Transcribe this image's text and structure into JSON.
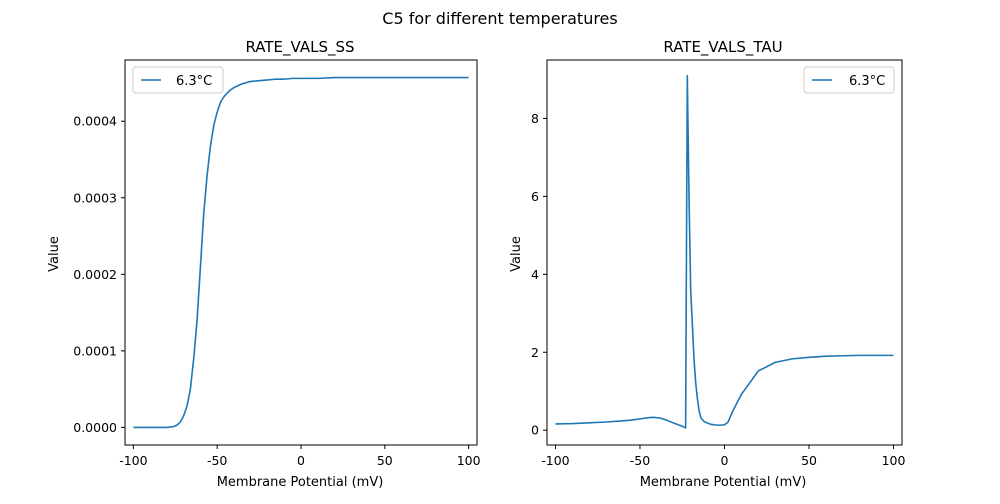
{
  "chart_data": {
    "suptitle": "C5 for different temperatures",
    "panels": [
      {
        "type": "line",
        "title": "RATE_VALS_SS",
        "xlabel": "Membrane Potential (mV)",
        "ylabel": "Value",
        "xlim": [
          -105,
          105
        ],
        "ylim": [
          -2.3e-05,
          0.00048
        ],
        "xticks": [
          -100,
          -50,
          0,
          50,
          100
        ],
        "yticks": [
          0.0,
          0.0001,
          0.0002,
          0.0003,
          0.0004
        ],
        "ytick_labels": [
          "0.0000",
          "0.0001",
          "0.0002",
          "0.0003",
          "0.0004"
        ],
        "legend_position": "top-left",
        "series": [
          {
            "name": "6.3°C",
            "color": "#1f77b4",
            "x": [
              -100,
              -90,
              -80,
              -76,
              -74,
              -72,
              -70,
              -68,
              -66,
              -64,
              -62,
              -60,
              -58,
              -56,
              -54,
              -52,
              -50,
              -48,
              -46,
              -44,
              -42,
              -40,
              -38,
              -35,
              -30,
              -25,
              -20,
              -15,
              -10,
              -5,
              0,
              10,
              20,
              30,
              40,
              50,
              60,
              70,
              80,
              90,
              100
            ],
            "y": [
              0.0,
              0.0,
              0.0,
              1e-06,
              3e-06,
              7e-06,
              1.5e-05,
              2.8e-05,
              5e-05,
              9e-05,
              0.00014,
              0.00021,
              0.00028,
              0.00033,
              0.000368,
              0.000395,
              0.000412,
              0.000425,
              0.000432,
              0.000437,
              0.000441,
              0.000444,
              0.000446,
              0.000449,
              0.000452,
              0.000453,
              0.000454,
              0.000455,
              0.000455,
              0.000456,
              0.000456,
              0.000456,
              0.000457,
              0.000457,
              0.000457,
              0.000457,
              0.000457,
              0.000457,
              0.000457,
              0.000457,
              0.000457
            ]
          }
        ]
      },
      {
        "type": "line",
        "title": "RATE_VALS_TAU",
        "xlabel": "Membrane Potential (mV)",
        "ylabel": "Value",
        "xlim": [
          -105,
          105
        ],
        "ylim": [
          -0.38,
          9.5
        ],
        "xticks": [
          -100,
          -50,
          0,
          50,
          100
        ],
        "yticks": [
          0,
          2,
          4,
          6,
          8
        ],
        "ytick_labels": [
          "0",
          "2",
          "4",
          "6",
          "8"
        ],
        "legend_position": "top-right",
        "series": [
          {
            "name": "6.3°C",
            "color": "#1f77b4",
            "x": [
              -100,
              -90,
              -80,
              -70,
              -60,
              -55,
              -50,
              -45,
              -42,
              -38,
              -35,
              -30,
              -25,
              -24,
              -23,
              -22,
              -21,
              -20,
              -19,
              -18,
              -17,
              -16,
              -15,
              -14,
              -12,
              -10,
              -8,
              -5,
              -2,
              0,
              2,
              5,
              10,
              20,
              30,
              40,
              50,
              60,
              70,
              80,
              90,
              100
            ],
            "y": [
              0.16,
              0.17,
              0.19,
              0.21,
              0.24,
              0.26,
              0.29,
              0.32,
              0.33,
              0.31,
              0.27,
              0.18,
              0.1,
              0.08,
              0.06,
              9.1,
              6.0,
              3.6,
              2.7,
              1.8,
              1.2,
              0.8,
              0.5,
              0.32,
              0.22,
              0.18,
              0.15,
              0.13,
              0.13,
              0.14,
              0.2,
              0.5,
              0.92,
              1.52,
              1.74,
              1.83,
              1.87,
              1.9,
              1.91,
              1.92,
              1.92,
              1.92
            ]
          }
        ]
      }
    ]
  }
}
